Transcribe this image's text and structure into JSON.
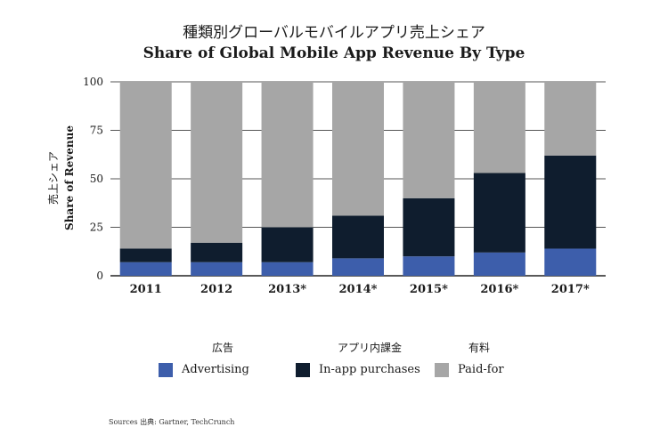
{
  "title_jp": "種類別グローバルモバイルアプリ売上シェア",
  "title_en": "Share of Global Mobile App Revenue By Type",
  "source": "Sources 出典: Gartner, TechCrunch",
  "colors": {
    "advertising": "#3d5eab",
    "in_app": "#0f1d2e",
    "paid_for": "#a6a6a6",
    "axis": "#444444"
  },
  "legend": [
    {
      "jp": "広告",
      "en": "Advertising",
      "color": "#3d5eab"
    },
    {
      "jp": "アプリ内課金",
      "en": "In-app purchases",
      "color": "#0f1d2e"
    },
    {
      "jp": "有料",
      "en": "Paid-for",
      "color": "#a6a6a6"
    }
  ],
  "chart_data": {
    "type": "bar",
    "stacked": true,
    "title": "種類別グローバルモバイルアプリ売上シェア / Share of Global Mobile App Revenue By Type",
    "xlabel": "",
    "ylabel_jp": "売上シェア",
    "ylabel": "Share of Revenue",
    "ylim": [
      0,
      100
    ],
    "yticks": [
      0,
      25,
      50,
      75,
      100
    ],
    "grid": true,
    "legend_position": "bottom",
    "categories": [
      "2011",
      "2012",
      "2013*",
      "2014*",
      "2015*",
      "2016*",
      "2017*"
    ],
    "series": [
      {
        "name": "Advertising",
        "values": [
          7,
          7,
          7,
          9,
          10,
          12,
          14
        ]
      },
      {
        "name": "In-app purchases",
        "values": [
          7,
          10,
          18,
          22,
          30,
          41,
          48
        ]
      },
      {
        "name": "Paid-for",
        "values": [
          86,
          83,
          75,
          69,
          60,
          47,
          38
        ]
      }
    ]
  }
}
